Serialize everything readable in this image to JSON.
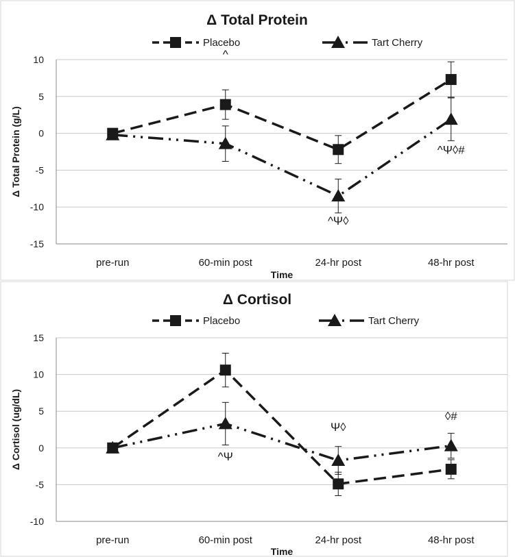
{
  "chart_data": [
    {
      "type": "line",
      "title": "Δ Total Protein",
      "xlabel": "Time",
      "ylabel": "Δ Total Protein (g/L)",
      "categories": [
        "pre-run",
        "60-min post",
        "24-hr post",
        "48-hr post"
      ],
      "ylim": [
        -15,
        10
      ],
      "yticks": [
        10,
        5,
        0,
        -5,
        -10,
        -15
      ],
      "grid": true,
      "legend_position": "top",
      "series": [
        {
          "name": "Placebo",
          "marker": "square",
          "dash": "dashed",
          "values": [
            0,
            3.9,
            -2.2,
            7.3
          ],
          "err": [
            0.5,
            2.0,
            1.9,
            2.4
          ]
        },
        {
          "name": "Tart Cherry",
          "marker": "triangle",
          "dash": "dash-dot-dot",
          "values": [
            -0.2,
            -1.4,
            -8.5,
            1.9
          ],
          "err": [
            0.5,
            2.4,
            2.3,
            2.9
          ]
        }
      ],
      "annotations": [
        {
          "category": "60-min post",
          "y": 10.2,
          "text": "^"
        },
        {
          "category": "24-hr post",
          "y": -12.4,
          "text": "^Ψ◊"
        },
        {
          "category": "48-hr post",
          "y": -2.8,
          "text": "^Ψ◊#"
        }
      ]
    },
    {
      "type": "line",
      "title": "Δ Cortisol",
      "xlabel": "Time",
      "ylabel": "Δ Cortisol (ug/dL)",
      "categories": [
        "pre-run",
        "60-min post",
        "24-hr post",
        "48-hr post"
      ],
      "ylim": [
        -10,
        15
      ],
      "yticks": [
        15,
        10,
        5,
        0,
        -5,
        -10
      ],
      "grid": true,
      "legend_position": "top",
      "series": [
        {
          "name": "Placebo",
          "marker": "square",
          "dash": "dashed",
          "values": [
            0,
            10.6,
            -4.9,
            -2.9
          ],
          "err": [
            0.4,
            2.3,
            1.6,
            1.3
          ]
        },
        {
          "name": "Tart Cherry",
          "marker": "triangle",
          "dash": "dash-dot-dot",
          "values": [
            0,
            3.3,
            -1.7,
            0.3
          ],
          "err": [
            0.4,
            2.9,
            1.9,
            1.7
          ]
        }
      ],
      "annotations": [
        {
          "category": "60-min post",
          "y": -1.7,
          "text": "^Ψ"
        },
        {
          "category": "24-hr post",
          "y": 2.3,
          "text": "Ψ◊"
        },
        {
          "category": "48-hr post",
          "y": 3.8,
          "text": "◊#"
        }
      ]
    }
  ]
}
